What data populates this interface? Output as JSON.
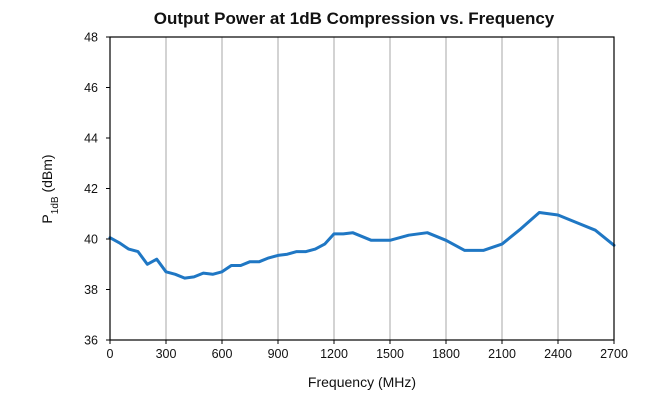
{
  "chart_data": {
    "type": "line",
    "title": "Output Power at 1dB Compression vs. Frequency",
    "xlabel": "Frequency (MHz)",
    "ylabel_main": "P",
    "ylabel_sub": "1dB",
    "ylabel_unit": " (dBm)",
    "xlim": [
      0,
      2700
    ],
    "ylim": [
      36,
      48
    ],
    "xticks": [
      0,
      300,
      600,
      900,
      1200,
      1500,
      1800,
      2100,
      2400,
      2700
    ],
    "yticks": [
      36,
      38,
      40,
      42,
      44,
      46,
      48
    ],
    "grid": "vertical",
    "colors": {
      "line": "#1f77c4",
      "grid": "#c8c8c8",
      "axis": "#000000"
    },
    "series": [
      {
        "x": [
          0,
          50,
          100,
          150,
          200,
          250,
          300,
          350,
          400,
          450,
          500,
          550,
          600,
          650,
          700,
          750,
          800,
          850,
          900,
          950,
          1000,
          1050,
          1100,
          1150,
          1200,
          1250,
          1300,
          1400,
          1500,
          1600,
          1700,
          1800,
          1900,
          2000,
          2100,
          2200,
          2300,
          2400,
          2500,
          2600,
          2700
        ],
        "y": [
          40.05,
          39.85,
          39.6,
          39.5,
          39.0,
          39.2,
          38.7,
          38.6,
          38.45,
          38.5,
          38.65,
          38.6,
          38.7,
          38.95,
          38.95,
          39.1,
          39.1,
          39.25,
          39.35,
          39.4,
          39.5,
          39.5,
          39.6,
          39.8,
          40.2,
          40.2,
          40.25,
          39.95,
          39.95,
          40.15,
          40.25,
          39.95,
          39.55,
          39.55,
          39.8,
          40.4,
          41.05,
          40.95,
          40.65,
          40.35,
          39.75
        ]
      }
    ]
  }
}
